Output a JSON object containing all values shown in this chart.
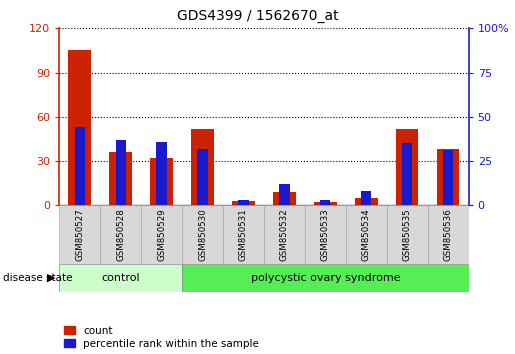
{
  "title": "GDS4399 / 1562670_at",
  "samples": [
    "GSM850527",
    "GSM850528",
    "GSM850529",
    "GSM850530",
    "GSM850531",
    "GSM850532",
    "GSM850533",
    "GSM850534",
    "GSM850535",
    "GSM850536"
  ],
  "count_values": [
    105,
    36,
    32,
    52,
    3,
    9,
    2,
    5,
    52,
    38
  ],
  "percentile_values": [
    44,
    37,
    36,
    32,
    3,
    12,
    3,
    8,
    35,
    31
  ],
  "left_ylim": [
    0,
    120
  ],
  "right_ylim": [
    0,
    100
  ],
  "left_yticks": [
    0,
    30,
    60,
    90,
    120
  ],
  "right_yticks": [
    0,
    25,
    50,
    75,
    100
  ],
  "left_yticklabels": [
    "0",
    "30",
    "60",
    "90",
    "120"
  ],
  "right_yticklabels": [
    "0",
    "25",
    "50",
    "75",
    "100%"
  ],
  "red_bar_width": 0.55,
  "blue_bar_width": 0.25,
  "count_color": "#cc2200",
  "percentile_color": "#1a1acc",
  "grid_color": "black",
  "control_color": "#ccffcc",
  "polycystic_color": "#55ee55",
  "bg_color": "#ffffff",
  "left_axis_color": "#cc2200",
  "right_axis_color": "#1a1acc",
  "title_fontsize": 10,
  "legend_count_label": "count",
  "legend_percentile_label": "percentile rank within the sample",
  "disease_state_label": "disease state",
  "control_label": "control",
  "polycystic_label": "polycystic ovary syndrome"
}
